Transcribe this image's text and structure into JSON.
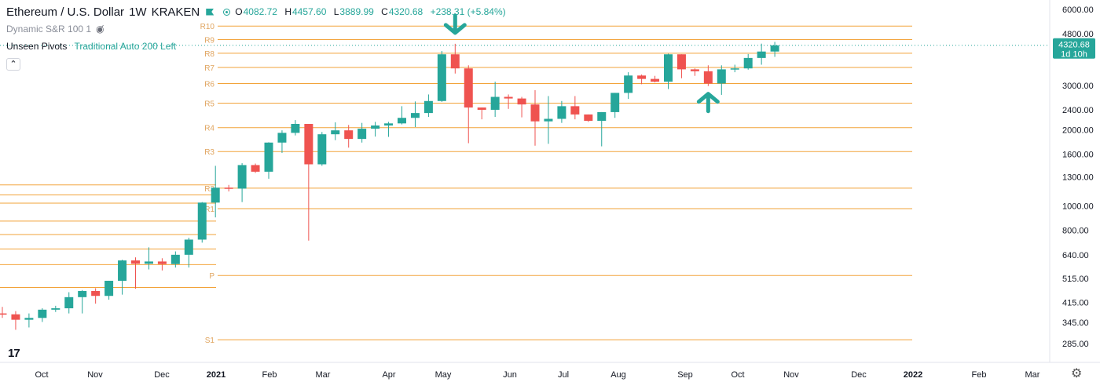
{
  "header": {
    "symbol": "Ethereum / U.S. Dollar",
    "interval": "1W",
    "exchange": "KRAKEN",
    "ohlc": {
      "o_label": "O",
      "o": "4082.72",
      "h_label": "H",
      "h": "4457.60",
      "l_label": "L",
      "l": "3889.99",
      "c_label": "C",
      "c": "4320.68",
      "change": "+238.31 (+5.84%)"
    }
  },
  "indicators": [
    {
      "name": "Dynamic S&R 100 1"
    },
    {
      "name": "Unseen Pivots",
      "params": "Traditional Auto 200 Left"
    }
  ],
  "colors": {
    "up": "#26a69a",
    "down": "#ef5350",
    "level": "#f2a33a",
    "label": "#e0a560",
    "axis_text": "#131722"
  },
  "chart_data": {
    "type": "candlestick",
    "scale": "log",
    "ylim": [
      240,
      6300
    ],
    "y_ticks": [
      6000,
      4800,
      3000,
      2400,
      2000,
      1600,
      1300,
      1000,
      800,
      640,
      515,
      415,
      345,
      285
    ],
    "y_tick_labels": [
      "6000.00",
      "4800.00",
      "3000.00",
      "2400.00",
      "2000.00",
      "1600.00",
      "1300.00",
      "1000.00",
      "800.00",
      "640.00",
      "515.00",
      "415.00",
      "345.00",
      "285.00"
    ],
    "x_labels": [
      "Oct",
      "Nov",
      "Dec",
      "2021",
      "Feb",
      "Mar",
      "Apr",
      "May",
      "Jun",
      "Jul",
      "Aug",
      "Sep",
      "Oct",
      "Nov",
      "Dec",
      "2022",
      "Feb",
      "Mar"
    ],
    "price_badge": {
      "price": "4320.68",
      "countdown": "1d 10h",
      "value": 4320.68
    },
    "pivots": [
      {
        "label": "R10",
        "value": 5150
      },
      {
        "label": "R9",
        "value": 4550
      },
      {
        "label": "R8",
        "value": 4020
      },
      {
        "label": "R7",
        "value": 3530
      },
      {
        "label": "R6",
        "value": 3050
      },
      {
        "label": "R5",
        "value": 2550
      },
      {
        "label": "R4",
        "value": 2040
      },
      {
        "label": "R3",
        "value": 1640
      },
      {
        "label": "R2",
        "value": 1175
      },
      {
        "label": "R1",
        "value": 975
      },
      {
        "label": "P",
        "value": 530
      },
      {
        "label": "S1",
        "value": 295
      }
    ],
    "left_levels": [
      1210,
      1105,
      1025,
      870,
      770,
      675,
      585,
      475
    ],
    "candles": [
      [
        375,
        372,
        398,
        360
      ],
      [
        372,
        354,
        383,
        323
      ],
      [
        354,
        360,
        375,
        330
      ],
      [
        360,
        388,
        393,
        347
      ],
      [
        388,
        393,
        402,
        380
      ],
      [
        393,
        435,
        455,
        375
      ],
      [
        435,
        460,
        464,
        375
      ],
      [
        460,
        440,
        472,
        410
      ],
      [
        440,
        505,
        485,
        425
      ],
      [
        505,
        608,
        612,
        445
      ],
      [
        608,
        590,
        625,
        470
      ],
      [
        590,
        602,
        685,
        560
      ],
      [
        602,
        588,
        620,
        555
      ],
      [
        588,
        640,
        660,
        570
      ],
      [
        640,
        735,
        748,
        570
      ],
      [
        735,
        1030,
        1035,
        715
      ],
      [
        1030,
        1180,
        1440,
        900
      ],
      [
        1180,
        1170,
        1210,
        1140
      ],
      [
        1170,
        1450,
        1475,
        1035
      ],
      [
        1450,
        1365,
        1470,
        1350
      ],
      [
        1365,
        1780,
        1785,
        1280
      ],
      [
        1780,
        1945,
        1990,
        1620
      ],
      [
        1945,
        2110,
        2185,
        1900
      ],
      [
        2110,
        1460,
        2090,
        728
      ],
      [
        1460,
        1920,
        1960,
        1440
      ],
      [
        1920,
        1990,
        2140,
        1820
      ],
      [
        1990,
        1840,
        2090,
        1700
      ],
      [
        1840,
        2020,
        2130,
        1780
      ],
      [
        2020,
        2080,
        2150,
        1880
      ],
      [
        2080,
        2120,
        2150,
        1875
      ],
      [
        2120,
        2230,
        2480,
        2100
      ],
      [
        2230,
        2330,
        2590,
        2050
      ],
      [
        2330,
        2600,
        2760,
        2250
      ],
      [
        2600,
        3980,
        4100,
        2580
      ],
      [
        3980,
        3500,
        4380,
        3340
      ],
      [
        3500,
        2450,
        3600,
        1770
      ],
      [
        2450,
        2400,
        2380,
        2200
      ],
      [
        2400,
        2700,
        3100,
        2250
      ],
      [
        2700,
        2660,
        2760,
        2420
      ],
      [
        2660,
        2520,
        2700,
        2240
      ],
      [
        2520,
        2160,
        2870,
        1730
      ],
      [
        2160,
        2210,
        2720,
        1760
      ],
      [
        2210,
        2480,
        2600,
        2130
      ],
      [
        2480,
        2300,
        2720,
        2200
      ],
      [
        2300,
        2170,
        2300,
        2150
      ],
      [
        2170,
        2350,
        2280,
        1720
      ],
      [
        2350,
        2800,
        2800,
        2230
      ],
      [
        2800,
        3280,
        3380,
        2650
      ],
      [
        3280,
        3180,
        3310,
        3030
      ],
      [
        3180,
        3100,
        3270,
        3080
      ],
      [
        3100,
        3980,
        4000,
        2900
      ],
      [
        3980,
        3470,
        3980,
        3200
      ],
      [
        3470,
        3410,
        3500,
        3270
      ],
      [
        3410,
        3050,
        3600,
        2980
      ],
      [
        3050,
        3470,
        3600,
        2750
      ],
      [
        3470,
        3500,
        3620,
        3380
      ],
      [
        3500,
        3850,
        3990,
        3460
      ],
      [
        3850,
        4082,
        4385,
        3620
      ],
      [
        4082,
        4320,
        4457,
        3889
      ]
    ]
  }
}
